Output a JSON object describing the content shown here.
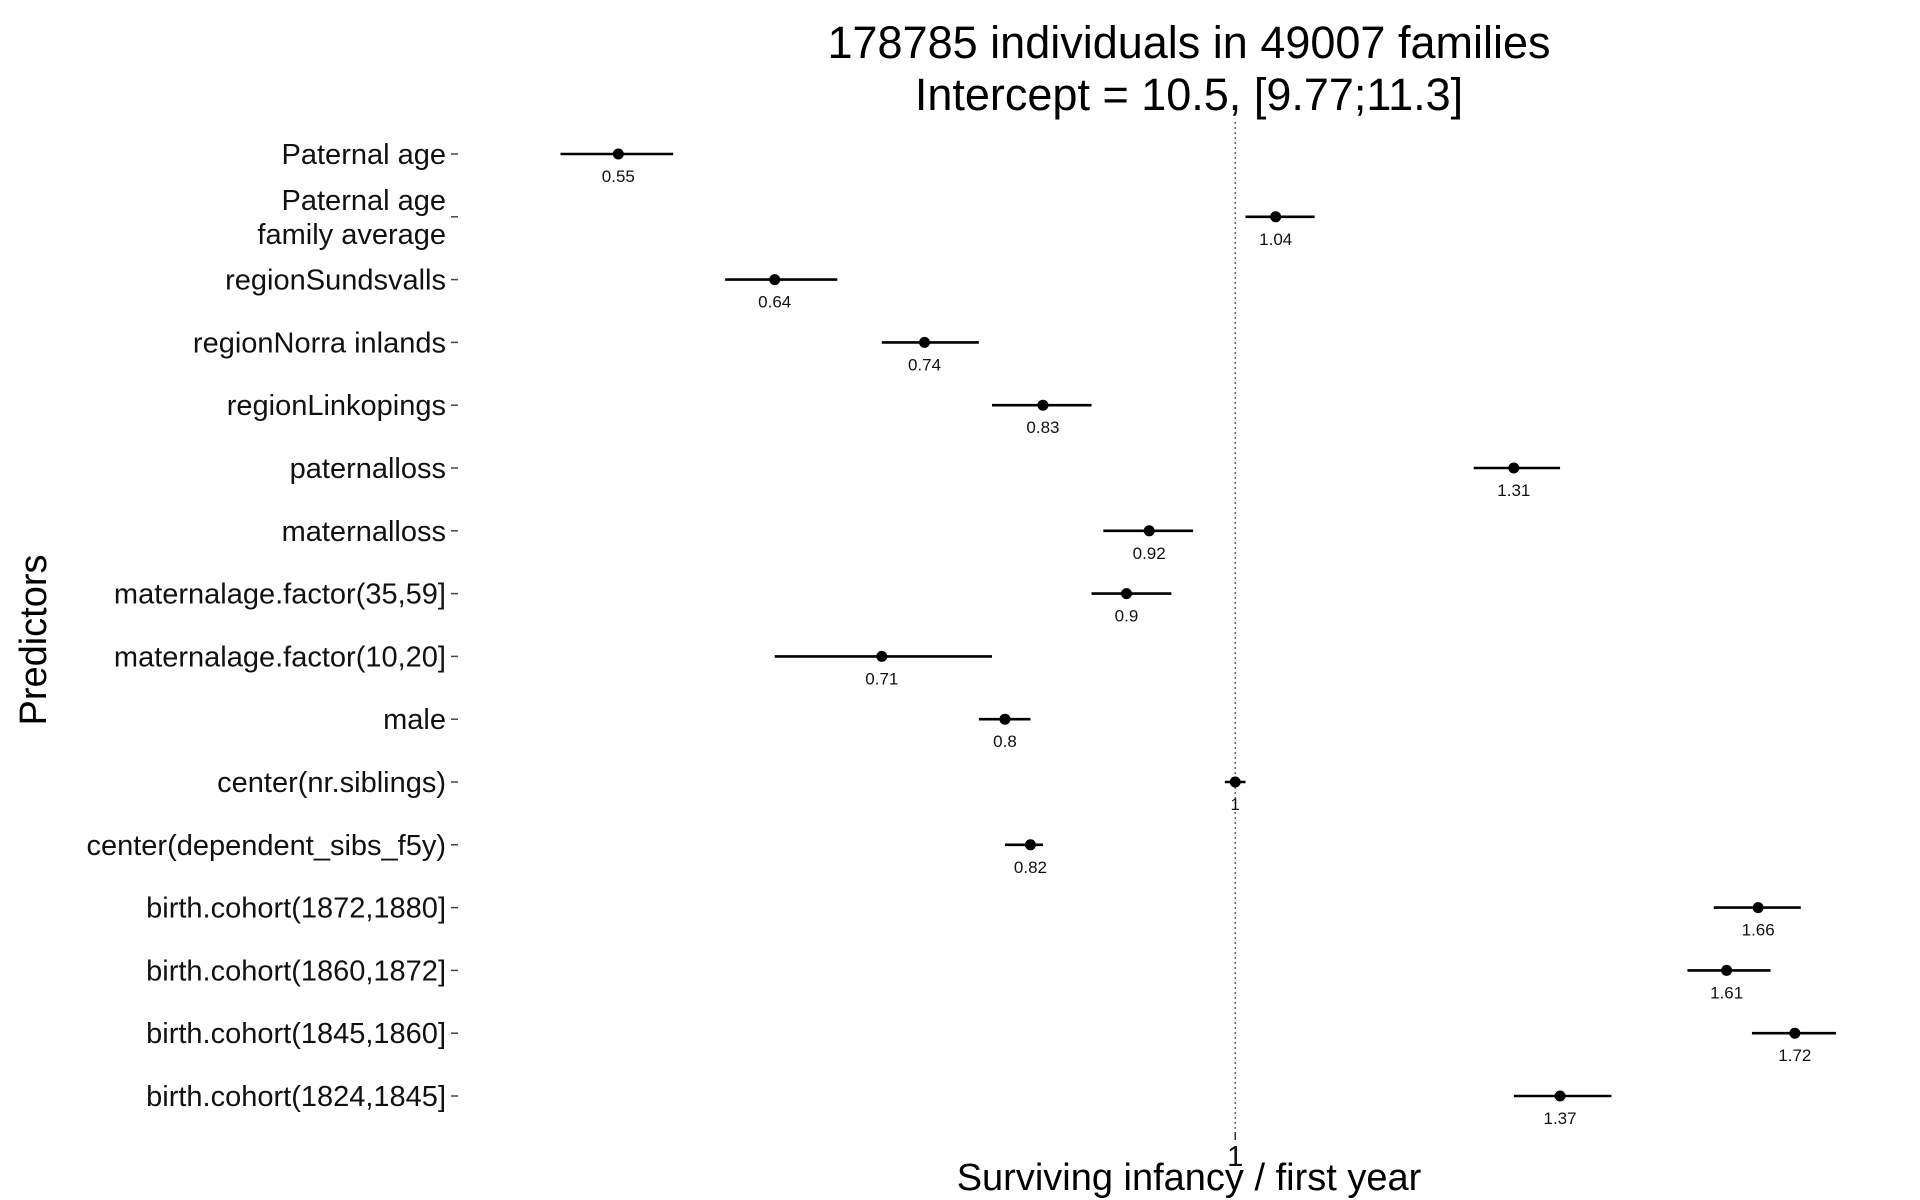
{
  "chart_data": {
    "type": "forest",
    "title_line1": "178785 individuals in 49007 families",
    "title_line2": "Intercept = 10.5, [9.77;11.3]",
    "xlabel": "Surviving infancy / first year",
    "ylabel": "Predictors",
    "x_scale": "log",
    "xlim": [
      0.5,
      1.85
    ],
    "x_ticks": [
      {
        "value": 1,
        "label": "1"
      }
    ],
    "reference_line": 1,
    "grid": false,
    "rows": [
      {
        "label": "Paternal age",
        "estimate": 0.55,
        "lower": 0.52,
        "upper": 0.58,
        "value_label": "0.55"
      },
      {
        "label": "Paternal age\nfamily average",
        "estimate": 1.04,
        "lower": 1.01,
        "upper": 1.08,
        "value_label": "1.04"
      },
      {
        "label": "regionSundsvalls",
        "estimate": 0.64,
        "lower": 0.61,
        "upper": 0.68,
        "value_label": "0.64"
      },
      {
        "label": "regionNorra inlands",
        "estimate": 0.74,
        "lower": 0.71,
        "upper": 0.78,
        "value_label": "0.74"
      },
      {
        "label": "regionLinkopings",
        "estimate": 0.83,
        "lower": 0.79,
        "upper": 0.87,
        "value_label": "0.83"
      },
      {
        "label": "paternalloss",
        "estimate": 1.31,
        "lower": 1.26,
        "upper": 1.37,
        "value_label": "1.31"
      },
      {
        "label": "maternalloss",
        "estimate": 0.92,
        "lower": 0.88,
        "upper": 0.96,
        "value_label": "0.92"
      },
      {
        "label": "maternalage.factor(35,59]",
        "estimate": 0.9,
        "lower": 0.87,
        "upper": 0.94,
        "value_label": "0.9"
      },
      {
        "label": "maternalage.factor(10,20]",
        "estimate": 0.71,
        "lower": 0.64,
        "upper": 0.79,
        "value_label": "0.71"
      },
      {
        "label": "male",
        "estimate": 0.8,
        "lower": 0.78,
        "upper": 0.82,
        "value_label": "0.8"
      },
      {
        "label": "center(nr.siblings)",
        "estimate": 1.0,
        "lower": 0.99,
        "upper": 1.01,
        "value_label": "1"
      },
      {
        "label": "center(dependent_sibs_f5y)",
        "estimate": 0.82,
        "lower": 0.8,
        "upper": 0.83,
        "value_label": "0.82"
      },
      {
        "label": "birth.cohort(1872,1880]",
        "estimate": 1.66,
        "lower": 1.59,
        "upper": 1.73,
        "value_label": "1.66"
      },
      {
        "label": "birth.cohort(1860,1872]",
        "estimate": 1.61,
        "lower": 1.55,
        "upper": 1.68,
        "value_label": "1.61"
      },
      {
        "label": "birth.cohort(1845,1860]",
        "estimate": 1.72,
        "lower": 1.65,
        "upper": 1.79,
        "value_label": "1.72"
      },
      {
        "label": "birth.cohort(1824,1845]",
        "estimate": 1.37,
        "lower": 1.31,
        "upper": 1.44,
        "value_label": "1.37"
      }
    ]
  }
}
